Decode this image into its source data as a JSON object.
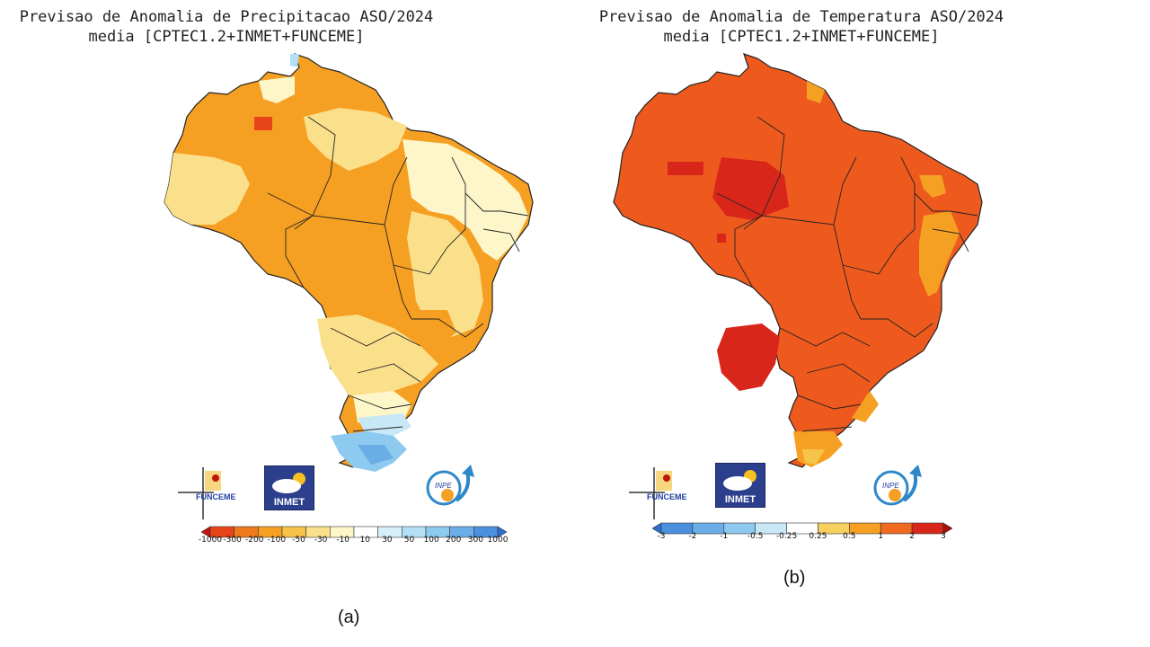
{
  "left_panel": {
    "title_line1": "Previsao de Anomalia de Precipitacao ASO/2024",
    "title_line2": "media [CPTEC1.2+INMET+FUNCEME]",
    "caption": "(a)",
    "colorbar_labels": [
      "-1000",
      "-300",
      "-200",
      "-100",
      "-50",
      "-30",
      "-10",
      "10",
      "30",
      "50",
      "100",
      "200",
      "300",
      "1000"
    ],
    "colorbar_colors": [
      "#c0140c",
      "#e8441a",
      "#ef7a1e",
      "#f6a023",
      "#f7c44a",
      "#fbe08c",
      "#fdf6c8",
      "#ffffff",
      "#d6f0fa",
      "#b4e0f5",
      "#8ec9f0",
      "#6aaee8",
      "#4a90de",
      "#2e6fcc"
    ],
    "map_colors": {
      "dominant": "#f6a023",
      "light": "#fbe08c",
      "pale": "#fdf6c8",
      "blue": "#8ec9f0",
      "lightblue": "#c8e8f8",
      "dark": "#ef7a1e"
    }
  },
  "right_panel": {
    "title_line1": "Previsao de Anomalia de Temperatura ASO/2024",
    "title_line2": "media [CPTEC1.2+INMET+FUNCEME]",
    "caption": "(b)",
    "colorbar_labels": [
      "-3",
      "-2",
      "-1",
      "-0.5",
      "-0.25",
      "0.25",
      "0.5",
      "1",
      "2",
      "3"
    ],
    "colorbar_colors": [
      "#2e6fcc",
      "#4a90de",
      "#6aaee8",
      "#8ec9f0",
      "#c8e8f8",
      "#ffffff",
      "#f7d060",
      "#f6a023",
      "#ef6a1e",
      "#d9261a",
      "#a8100c"
    ],
    "map_colors": {
      "dominant": "#ee5a1e",
      "dark": "#d9261a",
      "light": "#f6a023",
      "pale": "#f7c44a"
    }
  },
  "logos": {
    "funceme": "FUNCEME",
    "inmet": "INMET",
    "inpe": "INPE"
  }
}
